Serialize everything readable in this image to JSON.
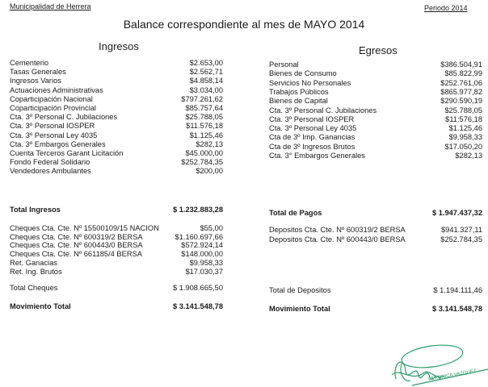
{
  "header": {
    "municipality": "Municipalidad de Herrera",
    "period": "Periodo 2014"
  },
  "title": "Balance correspondiente al mes de MAYO 2014",
  "ingresos": {
    "heading": "Ingresos",
    "items": [
      {
        "label": "Cementerio",
        "value": "$2.653,00"
      },
      {
        "label": "Tasas Generales",
        "value": "$2.562,71"
      },
      {
        "label": "Ingresos Varios",
        "value": "$4.858,14"
      },
      {
        "label": "Actuaciones Administrativas",
        "value": "$3.034,00"
      },
      {
        "label": "Coparticipación Nacional",
        "value": "$797.261,62"
      },
      {
        "label": "Coparticipación Provincial",
        "value": "$85.757,64"
      },
      {
        "label": "Cta. 3º Personal C. Jubilaciones",
        "value": "$25.788,05"
      },
      {
        "label": "Cta. 3º Personal IOSPER",
        "value": "$11.576,18"
      },
      {
        "label": "Cta. 3º Personal Ley 4035",
        "value": "$1.125,46"
      },
      {
        "label": "Cta. 3º Embargos Generales",
        "value": "$282,13"
      },
      {
        "label": "Cuenta Terceros Garant Licitación",
        "value": "$45.000,00"
      },
      {
        "label": "Fondo Federal Solidario",
        "value": "$252.784,35"
      },
      {
        "label": "Vendedores Ambulantes",
        "value": "$200,00"
      }
    ],
    "total": {
      "label": "Total Ingresos",
      "value": "$ 1.232.883,28"
    },
    "cheques": [
      {
        "label": "Cheques Cta. Cte. Nº 15500109/15 NACION",
        "value": "$55,00"
      },
      {
        "label": "Cheques Cta. Cte. Nº 600319/2 BERSA",
        "value": "$1.160.697,66"
      },
      {
        "label": "Cheques Cta. Cte. Nº 600443/0 BERSA",
        "value": "$572.924,14"
      },
      {
        "label": "Cheques Cta. Cte. Nº 661185/4 BERSA",
        "value": "$148.000,00"
      },
      {
        "label": "Ret. Ganacias",
        "value": "$9.958,33"
      },
      {
        "label": "Ret. Ing. Brutos",
        "value": "$17.030,37"
      }
    ],
    "total_cheques": {
      "label": "Total Cheques",
      "value": "$ 1.908.665,50"
    },
    "movimiento": {
      "label": "Movimiento Total",
      "value": "$ 3.141.548,78"
    }
  },
  "egresos": {
    "heading": "Egresos",
    "items": [
      {
        "label": "Personal",
        "value": "$386.504,91"
      },
      {
        "label": "Bienes de Consumo",
        "value": "$85.822,99"
      },
      {
        "label": "Servicios No Personales",
        "value": "$252.761,06"
      },
      {
        "label": "Trabajos Públicos",
        "value": "$865.977,82"
      },
      {
        "label": "Bienes de Capital",
        "value": "$290.590,19"
      },
      {
        "label": "Cta. 3º Personal C. Jubilaciones",
        "value": "$25.788,05"
      },
      {
        "label": "Cta. 3º Personal IOSPER",
        "value": "$11:576,18"
      },
      {
        "label": "Cta. 3º Personal Ley 4035",
        "value": "$1.125,46"
      },
      {
        "label": "Cta de 3º Imp. Ganancias",
        "value": "$9.958,33"
      },
      {
        "label": "Cta de 3º Ingresos Brutos",
        "value": "$17.050,20"
      },
      {
        "label": "Cta. 3° Embargos Generales",
        "value": "$282,13"
      }
    ],
    "total": {
      "label": "Total de Pagos",
      "value": "$ 1.947.437,32"
    },
    "depositos": [
      {
        "label": "Depositos Cta. Cte. Nº 600319/2 BERSA",
        "value": "$941.327,11"
      },
      {
        "label": "Depositos Cta. Cte. Nº 600443/0 BERSA",
        "value": "$252.784,35"
      }
    ],
    "total_depositos": {
      "label": "Total de Depositos",
      "value": "$ 1.194.111,46"
    },
    "movimiento": {
      "label": "Movimiento Total",
      "value": "$ 3.141.548,78"
    }
  },
  "signature": {
    "name": "VERONICA VAZQUEZ",
    "ink_color": "#2e9a6a"
  }
}
